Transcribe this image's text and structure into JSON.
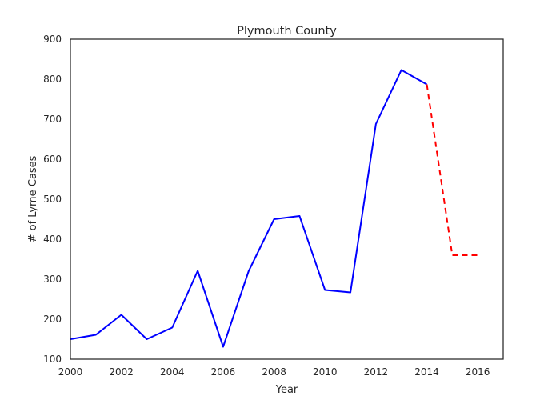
{
  "chart_data": {
    "type": "line",
    "title": "Plymouth County",
    "xlabel": "Year",
    "ylabel": "# of Lyme Cases",
    "xlim": [
      2000,
      2017
    ],
    "ylim": [
      100,
      900
    ],
    "xticks": [
      2000,
      2002,
      2004,
      2006,
      2008,
      2010,
      2012,
      2014,
      2016
    ],
    "yticks": [
      100,
      200,
      300,
      400,
      500,
      600,
      700,
      800,
      900
    ],
    "xtick_labels": [
      "2000",
      "2002",
      "2004",
      "2006",
      "2008",
      "2010",
      "2012",
      "2014",
      "2016"
    ],
    "ytick_labels": [
      "100",
      "200",
      "300",
      "400",
      "500",
      "600",
      "700",
      "800",
      "900"
    ],
    "grid": false,
    "series": [
      {
        "style": "solid",
        "color": "#0000ff",
        "x": [
          2000,
          2001,
          2002,
          2003,
          2004,
          2005,
          2006,
          2007,
          2008,
          2009,
          2010,
          2011,
          2012,
          2013,
          2014
        ],
        "y": [
          150,
          161,
          211,
          150,
          179,
          321,
          131,
          320,
          450,
          458,
          273,
          267,
          688,
          823,
          787
        ]
      },
      {
        "style": "dashed",
        "color": "#ff0000",
        "x": [
          2014,
          2015,
          2016
        ],
        "y": [
          787,
          360,
          360
        ]
      }
    ]
  }
}
